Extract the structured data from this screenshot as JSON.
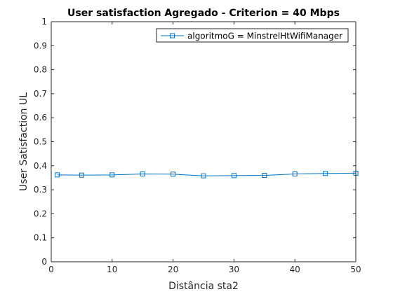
{
  "chart_data": {
    "type": "line",
    "title": "User satisfaction Agregado -  Criterion = 40 Mbps",
    "xlabel": "Distância sta2",
    "ylabel": "User Satisfaction UL",
    "xlim": [
      0,
      50
    ],
    "ylim": [
      0,
      1
    ],
    "xticks": [
      0,
      10,
      20,
      30,
      40,
      50
    ],
    "yticks": [
      0,
      0.1,
      0.2,
      0.3,
      0.4,
      0.5,
      0.6,
      0.7,
      0.8,
      0.9,
      1
    ],
    "xtick_labels": [
      "0",
      "10",
      "20",
      "30",
      "40",
      "50"
    ],
    "ytick_labels": [
      "0",
      "0.1",
      "0.2",
      "0.3",
      "0.4",
      "0.5",
      "0.6",
      "0.7",
      "0.8",
      "0.9",
      "1"
    ],
    "grid": false,
    "legend_position": "top-right",
    "series": [
      {
        "name": "algoritmoG = MinstrelHtWifiManager",
        "color": "#0072BD",
        "marker": "square",
        "x": [
          1,
          5,
          10,
          15,
          20,
          25,
          30,
          35,
          40,
          45,
          50
        ],
        "y": [
          0.362,
          0.361,
          0.362,
          0.366,
          0.365,
          0.358,
          0.359,
          0.36,
          0.366,
          0.368,
          0.369
        ]
      }
    ]
  }
}
